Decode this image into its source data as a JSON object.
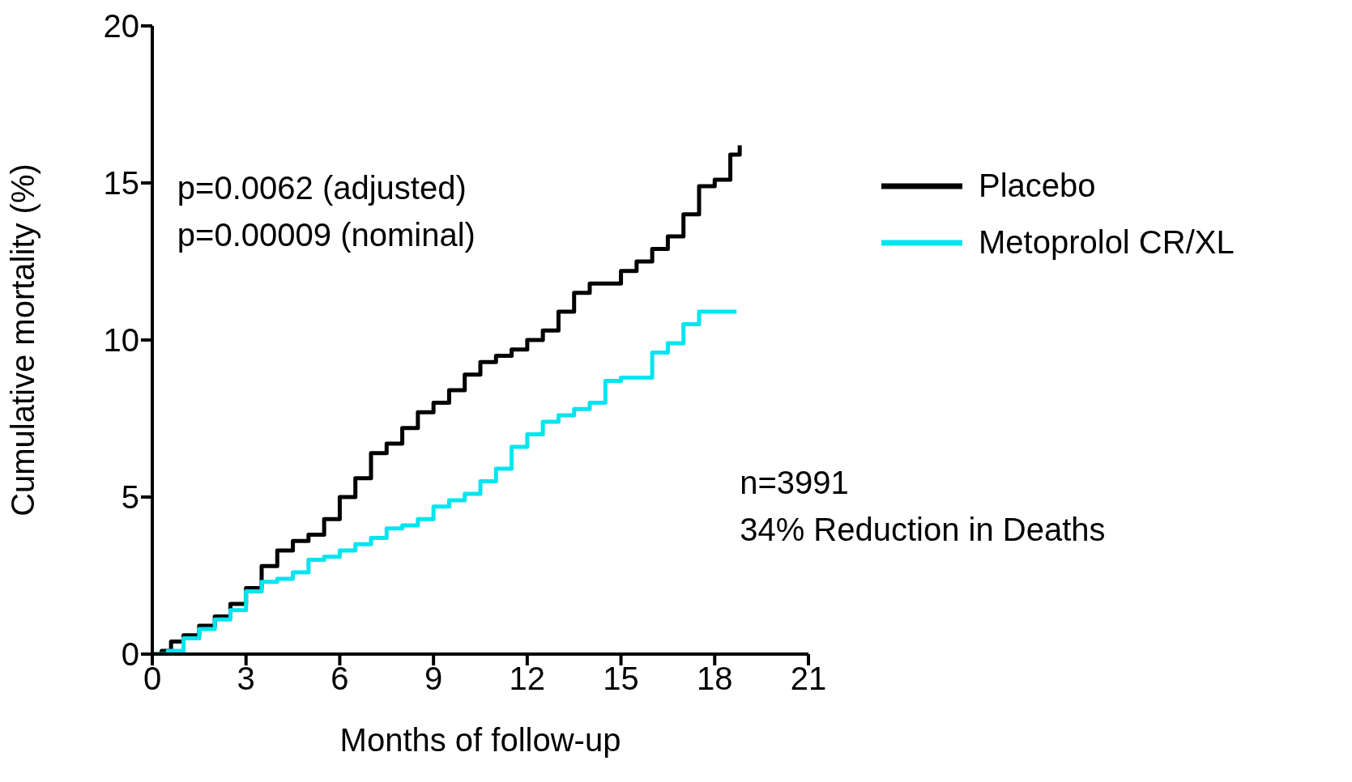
{
  "chart_data": {
    "type": "step",
    "xlabel": "Months of follow-up",
    "ylabel": "Cumulative mortality (%)",
    "xlim": [
      0,
      21
    ],
    "xticks": [
      0,
      3,
      6,
      9,
      12,
      15,
      18,
      21
    ],
    "ylim": [
      0,
      20
    ],
    "yticks": [
      0,
      5,
      10,
      15,
      20
    ],
    "grid": false,
    "legend": "right",
    "marker": "none",
    "line_style": "solid",
    "annotations": [
      "p=0.0062 (adjusted)\np=0.00009 (nominal)",
      "n=3991\n34% Reduction in Deaths"
    ],
    "series": [
      {
        "name": "Placebo",
        "color": "#000000",
        "x": [
          0,
          0.3,
          0.6,
          1,
          1.5,
          2,
          2.5,
          3,
          3.5,
          4,
          4.5,
          5,
          5.5,
          6,
          6.5,
          7,
          7.5,
          8,
          8.5,
          9,
          9.5,
          10,
          10.5,
          11,
          11.5,
          12,
          12.5,
          13,
          13.5,
          14,
          14.5,
          15,
          15.5,
          16,
          16.5,
          17,
          17.5,
          18,
          18.5,
          18.8
        ],
        "values": [
          0,
          0.1,
          0.4,
          0.6,
          0.9,
          1.2,
          1.6,
          2.1,
          2.8,
          3.3,
          3.6,
          3.8,
          4.3,
          5.0,
          5.6,
          6.4,
          6.7,
          7.2,
          7.7,
          8.0,
          8.4,
          8.9,
          9.3,
          9.5,
          9.7,
          10.0,
          10.3,
          10.9,
          11.5,
          11.8,
          11.8,
          12.2,
          12.5,
          12.9,
          13.3,
          14.0,
          14.9,
          15.1,
          15.9,
          16.2
        ]
      },
      {
        "name": "Metoprolol CR/XL",
        "color": "#00e5f0",
        "x": [
          0,
          0.5,
          1,
          1.5,
          2,
          2.5,
          3,
          3.5,
          4,
          4.5,
          5,
          5.5,
          6,
          6.5,
          7,
          7.5,
          8,
          8.5,
          9,
          9.5,
          10,
          10.5,
          11,
          11.5,
          12,
          12.5,
          13,
          13.5,
          14,
          14.5,
          15,
          15.5,
          16,
          16.5,
          17,
          17.5,
          18,
          18.7
        ],
        "values": [
          0,
          0.1,
          0.5,
          0.8,
          1.1,
          1.4,
          2.0,
          2.3,
          2.4,
          2.6,
          3.0,
          3.1,
          3.3,
          3.5,
          3.7,
          4.0,
          4.1,
          4.3,
          4.7,
          4.9,
          5.1,
          5.5,
          5.9,
          6.6,
          7.0,
          7.4,
          7.6,
          7.8,
          8.0,
          8.7,
          8.8,
          8.8,
          9.6,
          9.9,
          10.5,
          10.9,
          10.9,
          10.9
        ]
      }
    ]
  }
}
